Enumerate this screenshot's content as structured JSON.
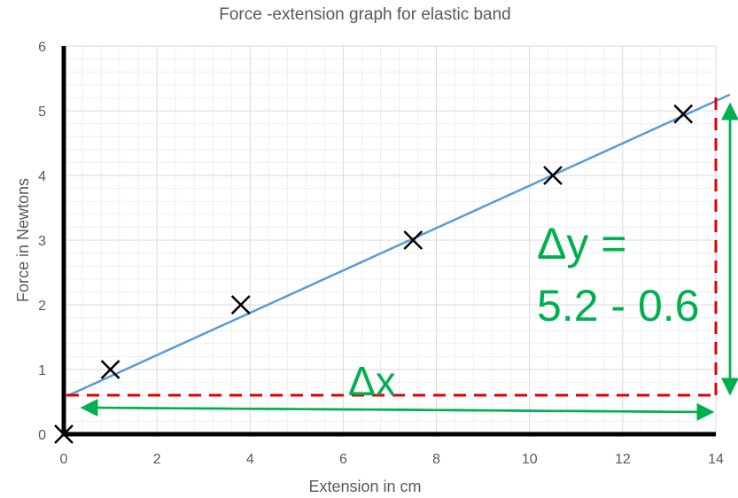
{
  "chart_data": {
    "type": "scatter",
    "title": "Force -extension graph for elastic band",
    "xlabel": "Extension in cm",
    "ylabel": "Force in Newtons",
    "xlim": [
      0,
      14
    ],
    "ylim": [
      0,
      6
    ],
    "x_ticks": [
      "0",
      "2",
      "4",
      "6",
      "8",
      "10",
      "12",
      "14"
    ],
    "y_ticks": [
      "0",
      "1",
      "2",
      "3",
      "4",
      "5",
      "6"
    ],
    "grid": true,
    "series": [
      {
        "name": "Measured points",
        "marker": "x",
        "x": [
          0,
          1,
          3.8,
          7.5,
          10.5,
          13.3
        ],
        "y": [
          0,
          1,
          2,
          3,
          4,
          4.95
        ]
      },
      {
        "name": "Line of best fit",
        "style": "line",
        "x": [
          0.1,
          14.3
        ],
        "y": [
          0.6,
          5.25
        ]
      }
    ],
    "annotations": {
      "delta_x_label": "Δx",
      "delta_y_label_line1": "Δy =",
      "delta_y_label_line2": "5.2 - 0.6",
      "dashed_horizontal_y": 0.6,
      "dashed_vertical_x": 14
    }
  },
  "colors": {
    "fit_line": "#5b9bd5",
    "marker": "#000000",
    "dashed_guides": "#e00000",
    "annotation_arrows": "#00b050",
    "grid_major": "#d9d9d9",
    "grid_minor": "#efefef",
    "text": "#595959"
  }
}
